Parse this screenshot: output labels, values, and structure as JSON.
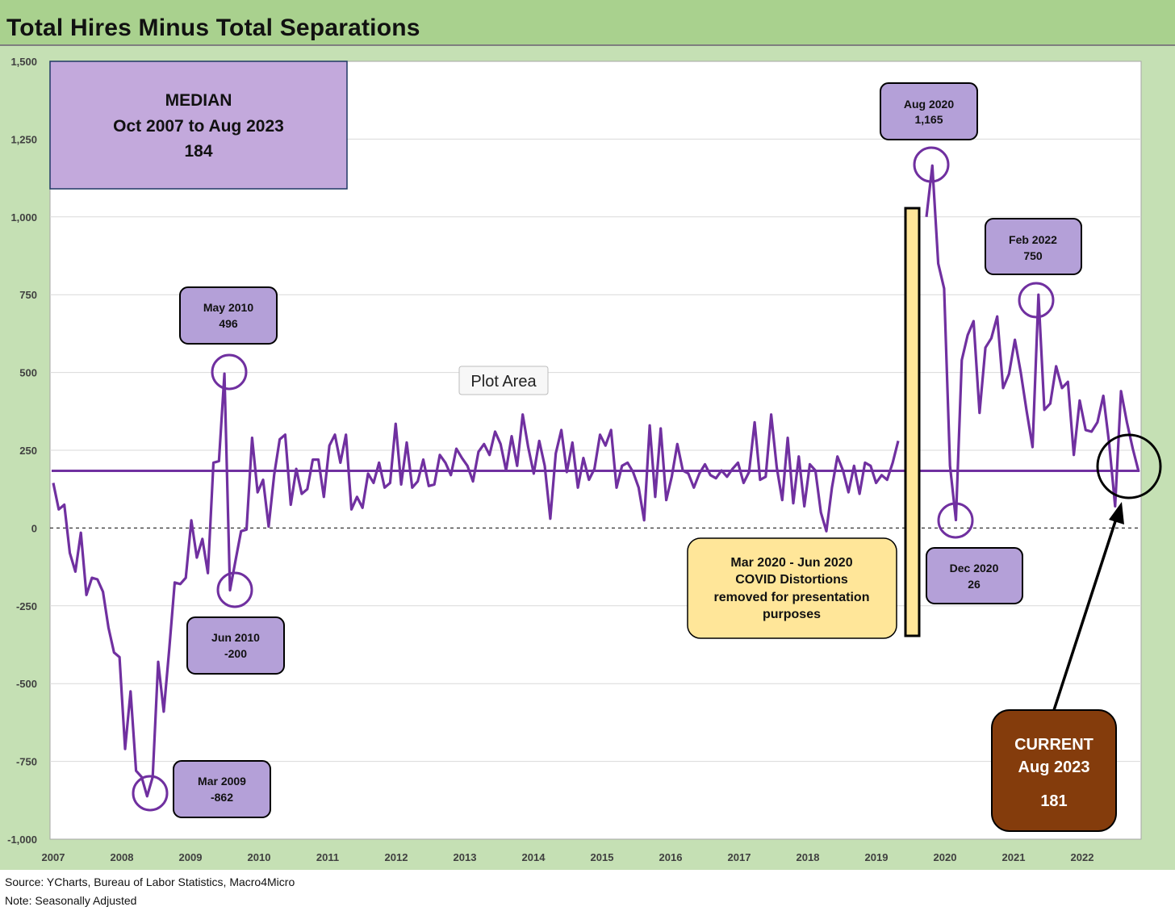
{
  "title": "Total Hires Minus Total Separations",
  "source_note": "Source: YCharts, Bureau of Labor Statistics, Macro4Micro",
  "note": "Note: Seasonally Adjusted",
  "plot_area_label": "Plot Area",
  "median_box": {
    "line1": "MEDIAN",
    "line2": "Oct 2007 to Aug 2023",
    "line3": "184"
  },
  "covid_box": {
    "line1": "Mar 2020 - Jun 2020",
    "line2": "COVID Distortions",
    "line3": "removed for presentation",
    "line4": "purposes"
  },
  "current_box": {
    "line1": "CURRENT",
    "line2": "Aug 2023",
    "line3": "181"
  },
  "callouts": [
    {
      "id": "mar-2009",
      "date": "Mar 2009",
      "value": "-862"
    },
    {
      "id": "may-2010",
      "date": "May 2010",
      "value": "496"
    },
    {
      "id": "jun-2010",
      "date": "Jun 2010",
      "value": "-200"
    },
    {
      "id": "aug-2020",
      "date": "Aug 2020",
      "value": "1,165"
    },
    {
      "id": "dec-2020",
      "date": "Dec 2020",
      "value": "26"
    },
    {
      "id": "feb-2022",
      "date": "Feb 2022",
      "value": "750"
    }
  ],
  "colors": {
    "series": "#7030a0",
    "callout_fill": "#b4a0d8",
    "covid_fill": "#ffe699",
    "current_fill": "#843c0c",
    "frame_green": "#c5e0b4",
    "title_green": "#a9d18e"
  },
  "chart_data": {
    "type": "line",
    "title": "Total Hires Minus Total Separations",
    "xlabel": "",
    "ylabel": "",
    "ylim": [
      -1000,
      1500
    ],
    "y_ticks": [
      1500,
      1250,
      1000,
      750,
      500,
      250,
      0,
      -250,
      -500,
      -750,
      -1000
    ],
    "y_tick_labels": [
      "1,500",
      "1,250",
      "1,000",
      "750",
      "500",
      "250",
      "0",
      "-250",
      "-500",
      "-750",
      "-1,000"
    ],
    "x_tick_labels": [
      "2007",
      "2008",
      "2009",
      "2010",
      "2011",
      "2012",
      "2013",
      "2014",
      "2015",
      "2016",
      "2017",
      "2018",
      "2019",
      "2020",
      "2021",
      "2022"
    ],
    "grid": true,
    "zero_line": "dashed",
    "median": 184,
    "series": [
      {
        "segment": "pre-covid",
        "values": [
          145,
          60,
          75,
          -80,
          -140,
          -15,
          -215,
          -160,
          -165,
          -205,
          -320,
          -400,
          -415,
          -710,
          -525,
          -780,
          -800,
          -862,
          -800,
          -430,
          -590,
          -390,
          -175,
          -180,
          -160,
          25,
          -95,
          -35,
          -145,
          210,
          215,
          496,
          -200,
          -105,
          -10,
          -5,
          290,
          115,
          155,
          5,
          170,
          285,
          300,
          75,
          190,
          110,
          125,
          220,
          220,
          100,
          265,
          300,
          210,
          300,
          60,
          100,
          65,
          175,
          145,
          210,
          130,
          145,
          335,
          140,
          275,
          130,
          150,
          220,
          135,
          140,
          235,
          210,
          170,
          255,
          225,
          200,
          150,
          245,
          270,
          235,
          310,
          270,
          185,
          295,
          200,
          365,
          260,
          175,
          280,
          200,
          30,
          240,
          315,
          180,
          275,
          130,
          225,
          155,
          190,
          300,
          265,
          315,
          130,
          200,
          210,
          180,
          130,
          25,
          330,
          100,
          320,
          90,
          165,
          270,
          185,
          175,
          130,
          175,
          205,
          170,
          160,
          185,
          165,
          190,
          210,
          145,
          180,
          340,
          155,
          165,
          365,
          195,
          90,
          290,
          80,
          230,
          70,
          205,
          185,
          50,
          -10,
          130,
          230,
          185,
          115,
          200,
          110,
          210,
          200,
          145,
          170,
          155,
          210,
          280
        ]
      },
      {
        "segment": "post-covid",
        "values": [
          1000,
          1165,
          850,
          770,
          200,
          26,
          540,
          620,
          665,
          370,
          580,
          610,
          680,
          450,
          495,
          605,
          500,
          375,
          260,
          750,
          380,
          400,
          520,
          450,
          470,
          235,
          410,
          315,
          310,
          340,
          425,
          270,
          70,
          440,
          340,
          255,
          181
        ]
      }
    ]
  }
}
